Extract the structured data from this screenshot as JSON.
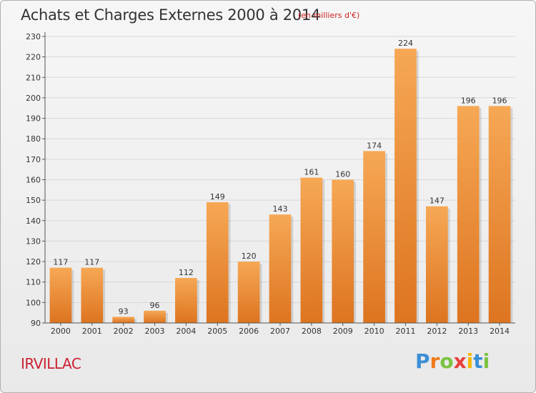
{
  "header": {
    "title": "Achats et Charges Externes 2000 à 2014",
    "subtitle": "(en milliers d'€)"
  },
  "footer": {
    "place": "IRVILLAC",
    "logo_text": "Proxiti"
  },
  "colors": {
    "bar_light": "#f6a855",
    "bar_dark": "#dd7420",
    "axis": "#555555",
    "grid": "#d8d8d8",
    "title": "#333333",
    "subtitle": "#cc2222",
    "place": "#cc2233"
  },
  "chart_data": {
    "type": "bar",
    "title": "Achats et Charges Externes 2000 à 2014",
    "subtitle": "(en milliers d'€)",
    "xlabel": "",
    "ylabel": "",
    "ylim": [
      90,
      230
    ],
    "yticks": [
      90,
      100,
      110,
      120,
      130,
      140,
      150,
      160,
      170,
      180,
      190,
      200,
      210,
      220,
      230
    ],
    "grid": true,
    "categories": [
      "2000",
      "2001",
      "2002",
      "2003",
      "2004",
      "2005",
      "2006",
      "2007",
      "2008",
      "2009",
      "2010",
      "2011",
      "2012",
      "2013",
      "2014"
    ],
    "values": [
      117,
      117,
      93,
      96,
      112,
      149,
      120,
      143,
      161,
      160,
      174,
      224,
      147,
      196,
      196
    ],
    "data_labels": [
      "117",
      "117",
      "93",
      "96",
      "112",
      "149",
      "120",
      "143",
      "161",
      "160",
      "174",
      "224",
      "147",
      "196",
      "196"
    ]
  }
}
